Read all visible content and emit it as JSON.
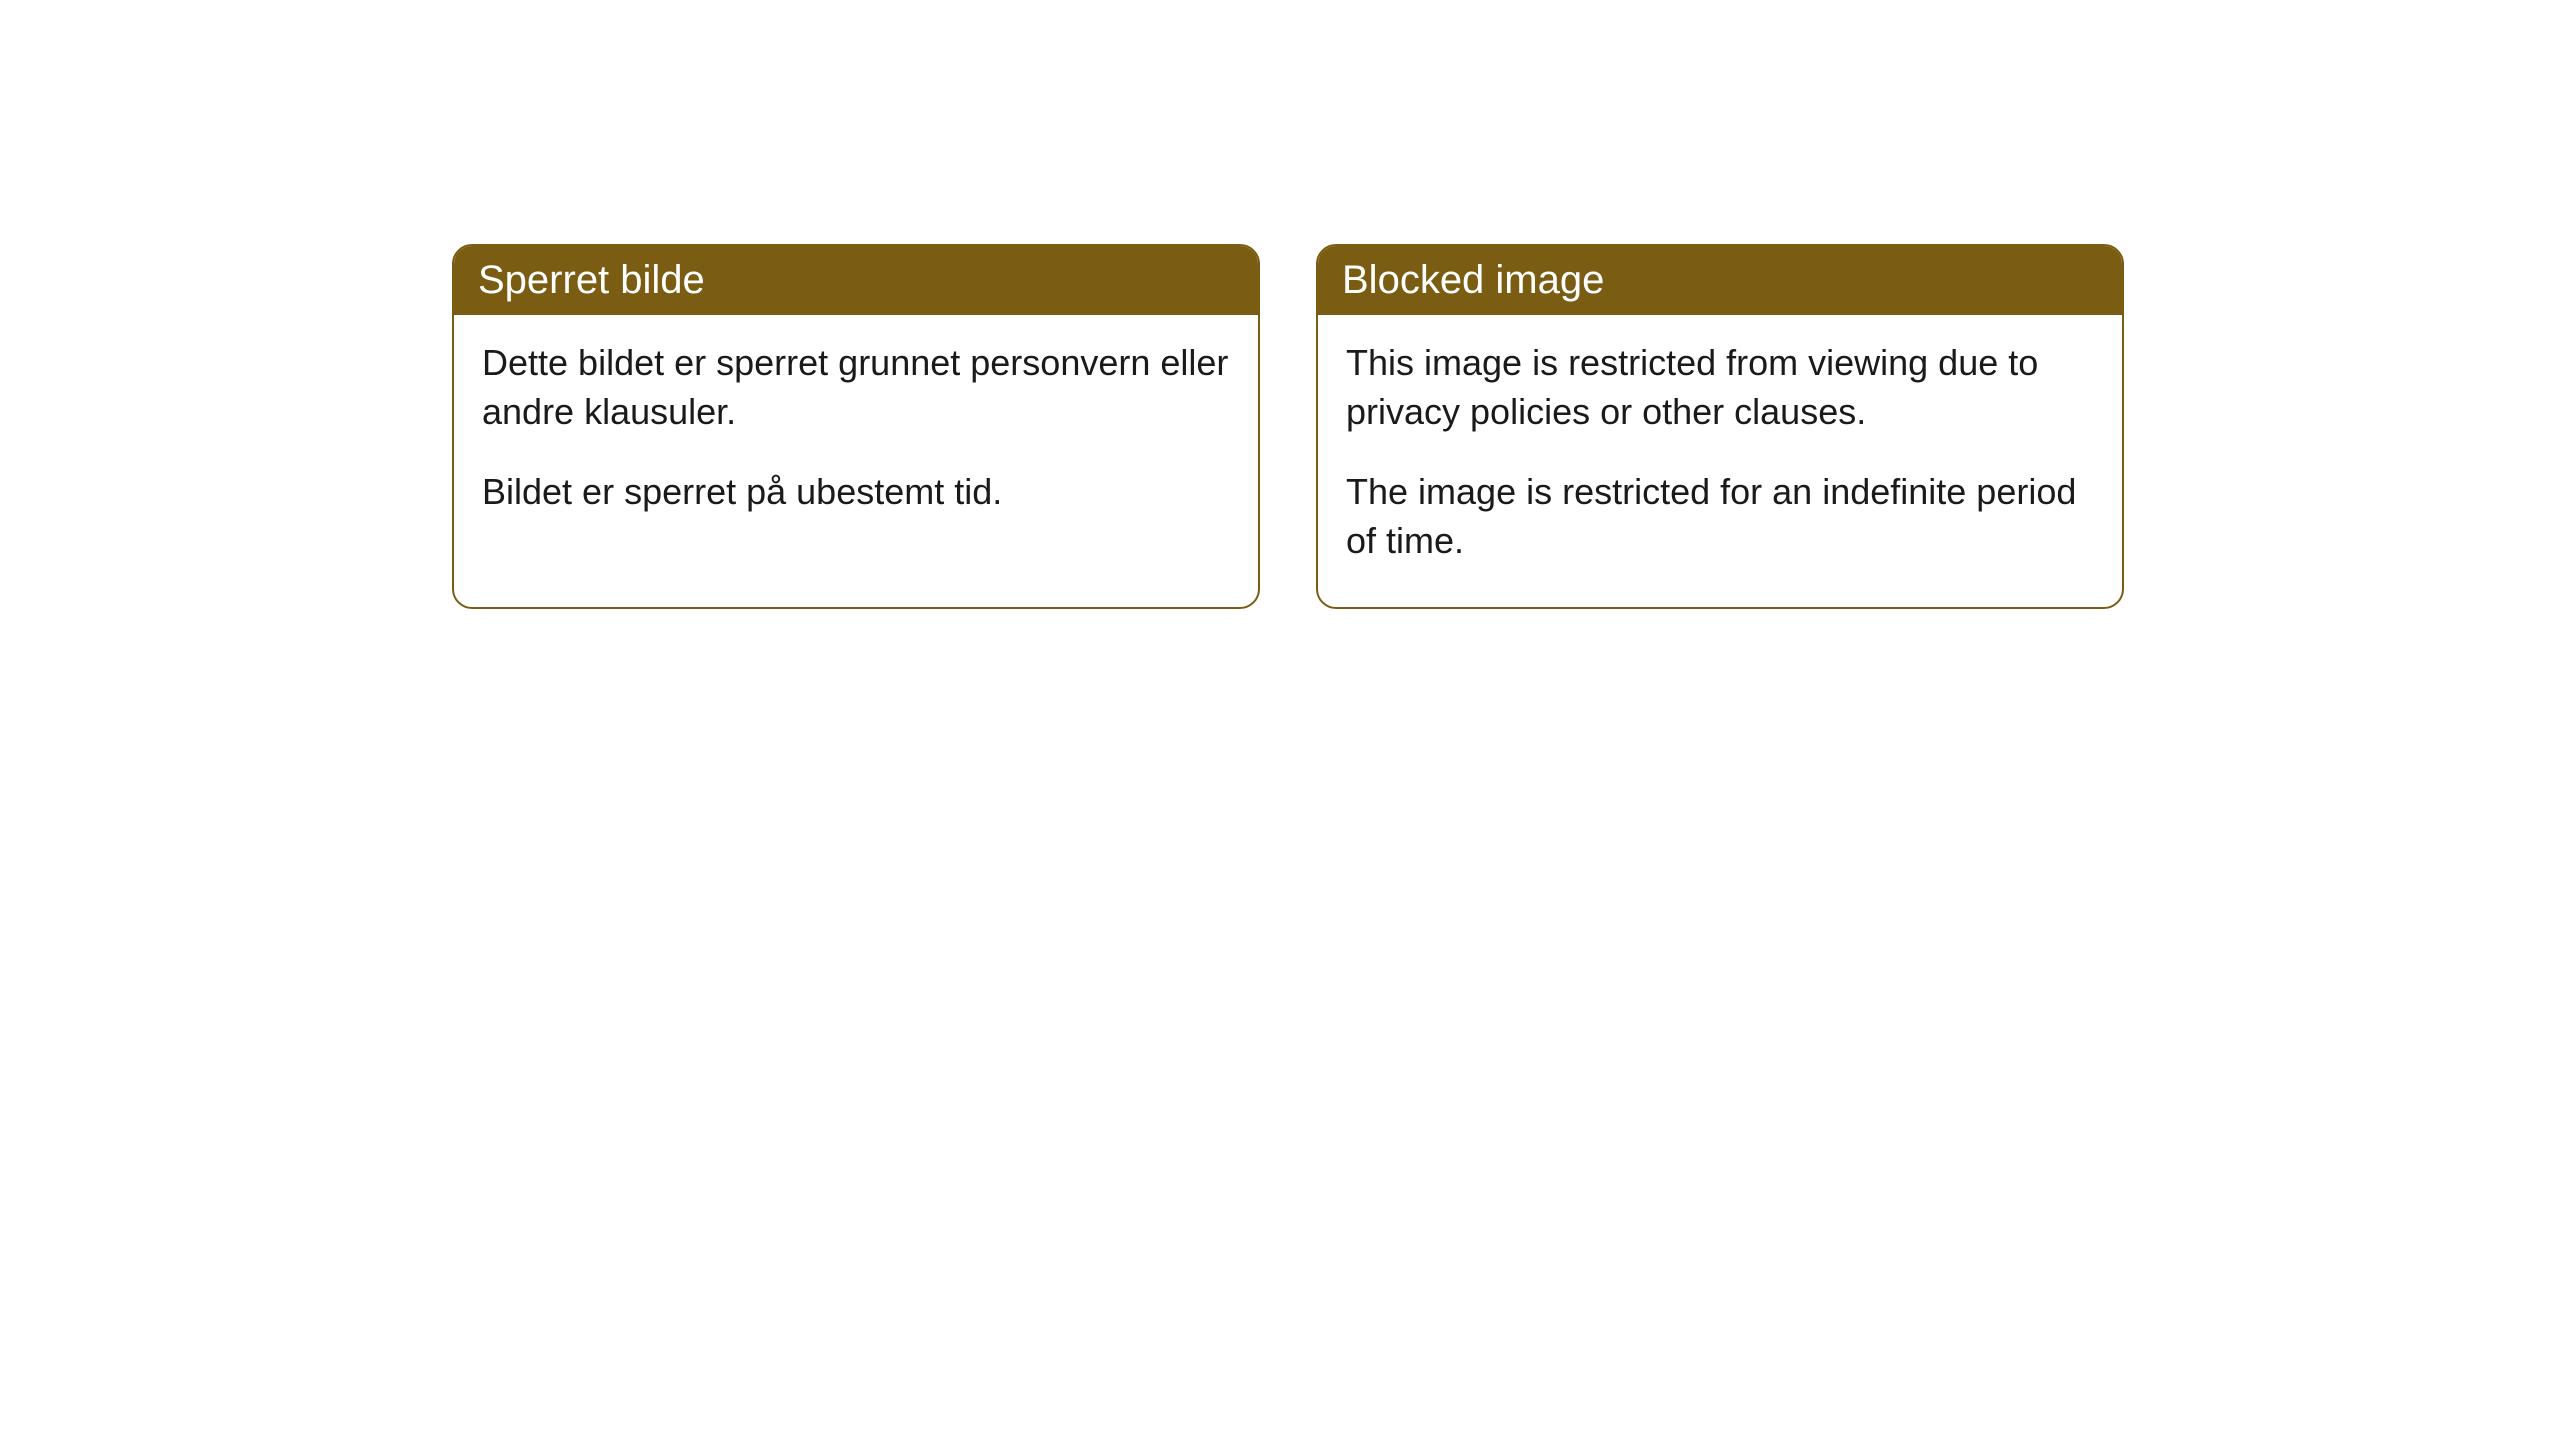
{
  "cards": [
    {
      "header": "Sperret bilde",
      "body_line1": "Dette bildet er sperret grunnet personvern eller andre klausuler.",
      "body_line2": "Bildet er sperret på ubestemt tid."
    },
    {
      "header": "Blocked image",
      "body_line1": "This image is restricted from viewing due to privacy policies or other clauses.",
      "body_line2": "The image is restricted for an indefinite period of time."
    }
  ],
  "styling": {
    "header_bg_color": "#7a5c13",
    "header_text_color": "#ffffff",
    "card_border_color": "#7a5c13",
    "card_bg_color": "#ffffff",
    "body_text_color": "#1a1a1a",
    "page_bg_color": "#ffffff",
    "header_fontsize": 40,
    "body_fontsize": 36,
    "border_radius": 20,
    "border_width": 2
  }
}
